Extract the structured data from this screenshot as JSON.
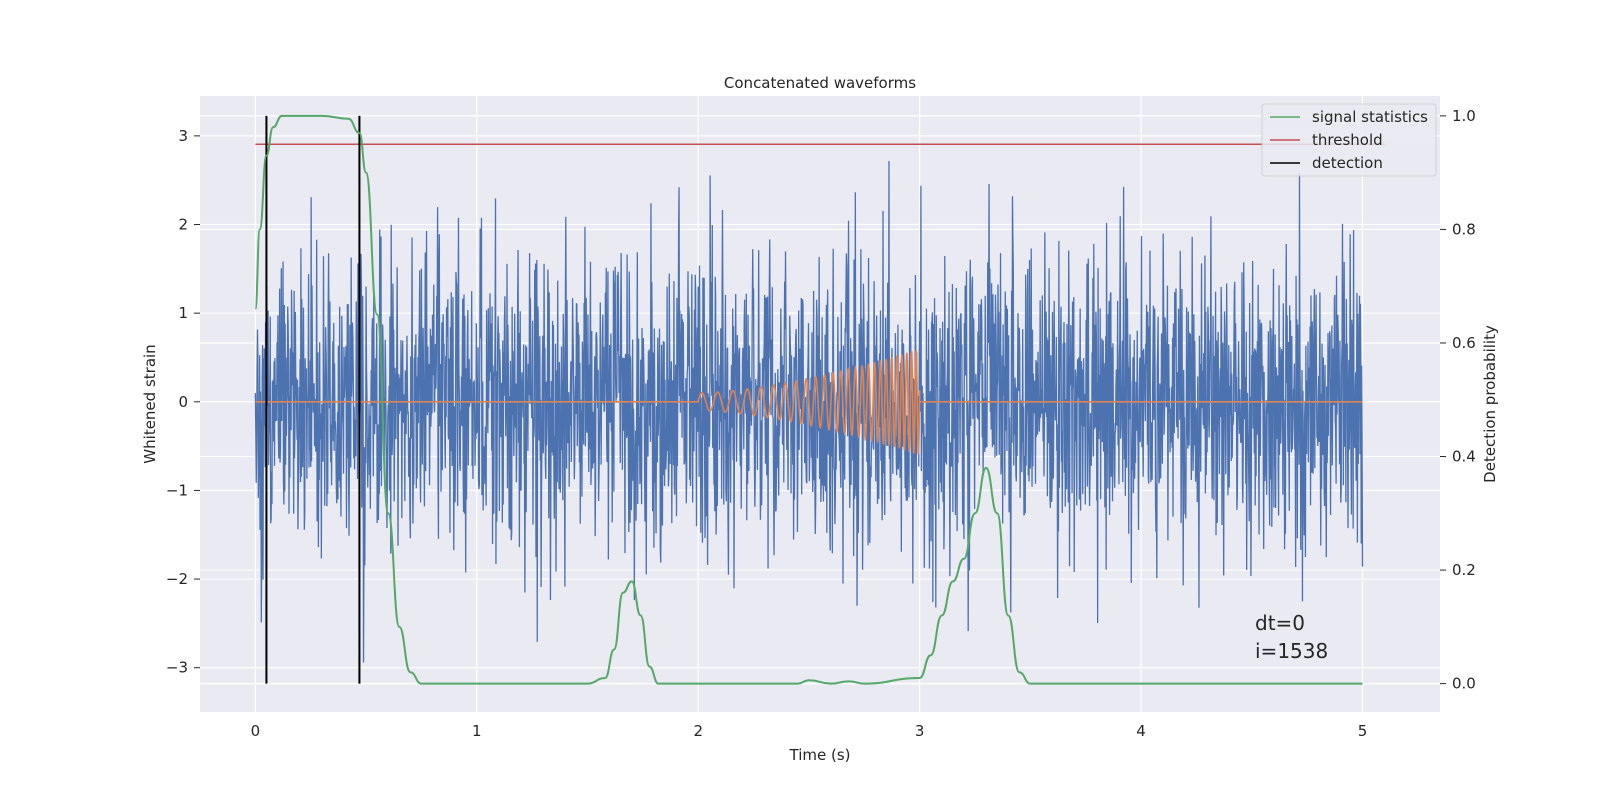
{
  "chart_data": {
    "type": "line",
    "title": "Concatenated waveforms",
    "xlabel": "Time (s)",
    "ylabel": "Whitened strain",
    "ylabel_right": "Detection probability",
    "xlim": [
      -0.25,
      5.35
    ],
    "ylim": [
      -3.5,
      3.45
    ],
    "ylim_right": [
      -0.05,
      1.035
    ],
    "x_ticks": [
      0,
      1,
      2,
      3,
      4,
      5
    ],
    "y_ticks": [
      -3,
      -2,
      -1,
      0,
      1,
      2,
      3
    ],
    "y_ticks_right": [
      0.0,
      0.2,
      0.4,
      0.6,
      0.8,
      1.0
    ],
    "x_tick_labels": [
      "0",
      "1",
      "2",
      "3",
      "4",
      "5"
    ],
    "y_tick_labels": [
      "−3",
      "−2",
      "−1",
      "0",
      "1",
      "2",
      "3"
    ],
    "y_tick_labels_right": [
      "0.0",
      "0.2",
      "0.4",
      "0.6",
      "0.8",
      "1.0"
    ],
    "grid": true,
    "legend_position": "top-right",
    "legend": [
      {
        "label": "signal statistics",
        "color": "#55a868"
      },
      {
        "label": "threshold",
        "color": "#c44e52"
      },
      {
        "label": "detection",
        "color": "#000000"
      }
    ],
    "colors": {
      "strain": "#4c72b0",
      "injection": "#dd8452",
      "signal_statistics": "#55a868",
      "threshold": "#c44e52",
      "detection": "#000000",
      "plot_bg": "#eaeaf2",
      "grid": "#ffffff"
    },
    "series": [
      {
        "axis": "left",
        "kind": "noise-envelope",
        "x_range": [
          0,
          5
        ],
        "max_peak": 3.05,
        "min_peak": -3.2
      },
      {
        "axis": "left",
        "kind": "chirp",
        "x_range": [
          2,
          3
        ],
        "amplitude_end": 0.6
      },
      {
        "name": "signal statistics",
        "axis": "right",
        "x": [
          0,
          0.02,
          0.05,
          0.08,
          0.12,
          0.18,
          0.3,
          0.42,
          0.47,
          0.5,
          0.55,
          0.6,
          0.65,
          0.7,
          0.75,
          1.0,
          1.5,
          1.58,
          1.62,
          1.66,
          1.7,
          1.74,
          1.78,
          1.82,
          2.0,
          2.45,
          2.5,
          2.6,
          2.68,
          2.75,
          3.0,
          3.05,
          3.1,
          3.15,
          3.2,
          3.25,
          3.3,
          3.35,
          3.4,
          3.45,
          3.5,
          3.6,
          4.0,
          4.5,
          5.0
        ],
        "y": [
          0.66,
          0.8,
          0.93,
          0.98,
          1.0,
          1.0,
          1.0,
          0.995,
          0.97,
          0.9,
          0.65,
          0.3,
          0.1,
          0.02,
          0.0,
          0.0,
          0.0,
          0.01,
          0.06,
          0.16,
          0.18,
          0.12,
          0.03,
          0.0,
          0.0,
          0.0,
          0.006,
          0.0,
          0.004,
          0.0,
          0.01,
          0.05,
          0.12,
          0.18,
          0.22,
          0.3,
          0.38,
          0.3,
          0.12,
          0.02,
          0.0,
          0.0,
          0.0,
          0.0,
          0.0
        ]
      },
      {
        "name": "threshold",
        "axis": "right",
        "x": [
          0,
          5.1
        ],
        "y": [
          0.95,
          0.95
        ]
      }
    ],
    "detections": [
      0.05,
      0.47
    ],
    "detection_range_right": [
      0.0,
      1.0
    ],
    "annotations": [
      "dt=0",
      "i=1538"
    ]
  }
}
